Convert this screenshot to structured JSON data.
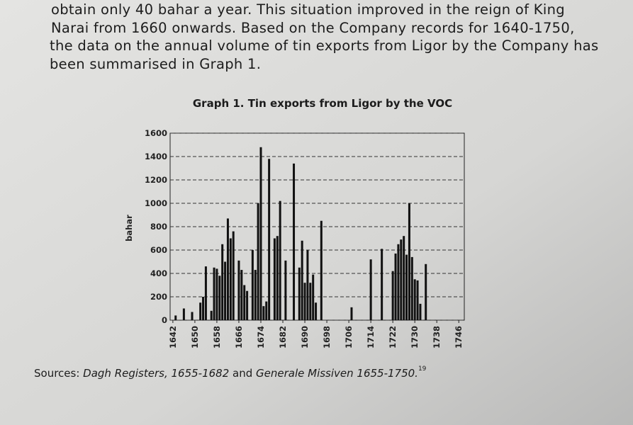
{
  "paragraph": [
    "obtain only 40 bahar a year. This situation improved in the reign of King",
    "Narai from 1660 onwards. Based on the Company records for 1640-1750,",
    "the data on the annual volume of tin exports from Ligor by the Company has",
    "been summarised in Graph 1."
  ],
  "chart_data": {
    "type": "bar",
    "title": "Graph 1. Tin exports from Ligor by the VOC",
    "y_label": "bahar",
    "x": [
      1643,
      1646,
      1649,
      1652,
      1653,
      1654,
      1656,
      1657,
      1658,
      1659,
      1660,
      1661,
      1662,
      1663,
      1664,
      1666,
      1667,
      1668,
      1669,
      1671,
      1672,
      1673,
      1674,
      1675,
      1676,
      1677,
      1679,
      1680,
      1681,
      1683,
      1686,
      1688,
      1689,
      1690,
      1691,
      1692,
      1693,
      1694,
      1696,
      1707,
      1714,
      1718,
      1722,
      1723,
      1724,
      1725,
      1726,
      1727,
      1728,
      1729,
      1730,
      1731,
      1732,
      1734
    ],
    "values": [
      40,
      100,
      70,
      150,
      200,
      460,
      80,
      450,
      440,
      380,
      650,
      500,
      870,
      700,
      760,
      510,
      430,
      300,
      250,
      600,
      430,
      1000,
      1480,
      120,
      160,
      1380,
      700,
      720,
      1020,
      510,
      1340,
      450,
      680,
      320,
      600,
      320,
      390,
      150,
      850,
      110,
      520,
      610,
      420,
      570,
      650,
      690,
      720,
      560,
      1000,
      540,
      350,
      340,
      140,
      480
    ],
    "color": "#111111",
    "xlim": [
      1641,
      1748
    ],
    "xticks": [
      1642,
      1650,
      1658,
      1666,
      1674,
      1682,
      1690,
      1698,
      1706,
      1714,
      1722,
      1730,
      1738,
      1746
    ],
    "ylim": [
      0,
      1600
    ],
    "yticks": [
      0,
      200,
      400,
      600,
      800,
      1000,
      1200,
      1400,
      1600
    ],
    "grid": true
  },
  "source": {
    "prefix": "Sources: ",
    "work1": "Dagh Registers, 1655-1682",
    "joiner": " and ",
    "work2": "Generale Missiven 1655-1750.",
    "note": "19"
  }
}
